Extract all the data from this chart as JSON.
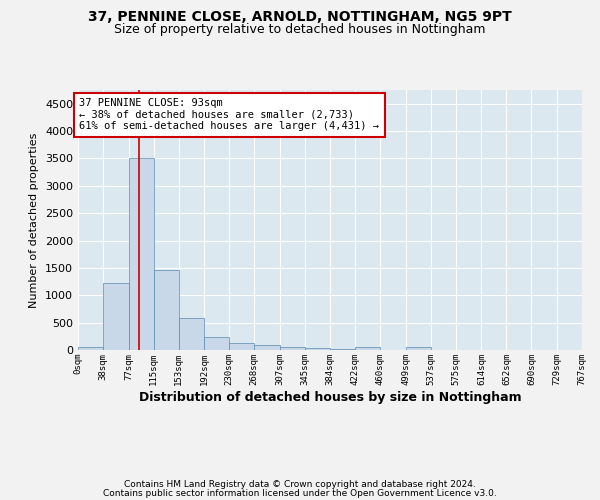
{
  "title1": "37, PENNINE CLOSE, ARNOLD, NOTTINGHAM, NG5 9PT",
  "title2": "Size of property relative to detached houses in Nottingham",
  "xlabel": "Distribution of detached houses by size in Nottingham",
  "ylabel": "Number of detached properties",
  "bin_labels": [
    "0sqm",
    "38sqm",
    "77sqm",
    "115sqm",
    "153sqm",
    "192sqm",
    "230sqm",
    "268sqm",
    "307sqm",
    "345sqm",
    "384sqm",
    "422sqm",
    "460sqm",
    "499sqm",
    "537sqm",
    "575sqm",
    "614sqm",
    "652sqm",
    "690sqm",
    "729sqm",
    "767sqm"
  ],
  "bin_edges": [
    0,
    38,
    77,
    115,
    153,
    192,
    230,
    268,
    307,
    345,
    384,
    422,
    460,
    499,
    537,
    575,
    614,
    652,
    690,
    729,
    767
  ],
  "bar_heights": [
    50,
    1230,
    3500,
    1470,
    580,
    240,
    130,
    85,
    55,
    30,
    10,
    50,
    0,
    50,
    0,
    0,
    0,
    0,
    0,
    0
  ],
  "bar_color": "#c8d8e8",
  "bar_edge_color": "#5a8ab0",
  "property_size": 93,
  "property_label": "37 PENNINE CLOSE: 93sqm",
  "annotation_line1": "← 38% of detached houses are smaller (2,733)",
  "annotation_line2": "61% of semi-detached houses are larger (4,431) →",
  "vline_color": "#cc0000",
  "annotation_box_edge": "#cc0000",
  "ylim": [
    0,
    4750
  ],
  "yticks": [
    0,
    500,
    1000,
    1500,
    2000,
    2500,
    3000,
    3500,
    4000,
    4500
  ],
  "footer1": "Contains HM Land Registry data © Crown copyright and database right 2024.",
  "footer2": "Contains public sector information licensed under the Open Government Licence v3.0.",
  "fig_background": "#f2f2f2",
  "plot_background": "#dce8f0",
  "grid_color": "#ffffff",
  "title1_fontsize": 10,
  "title2_fontsize": 9
}
